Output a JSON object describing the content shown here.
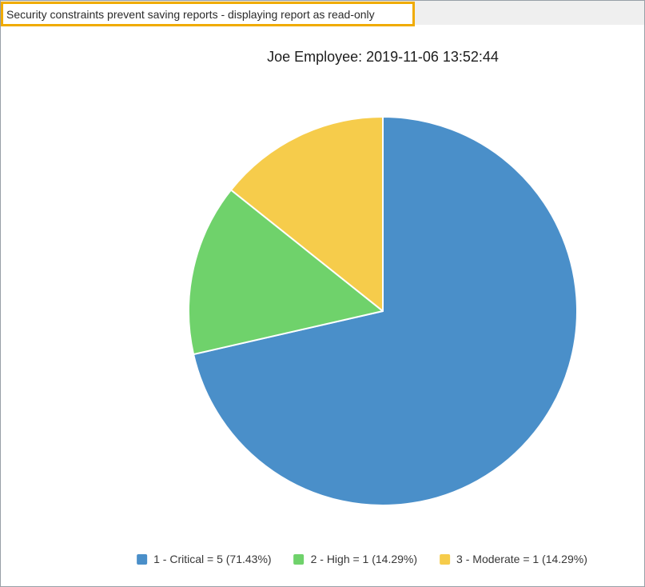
{
  "banner": {
    "text": "Security constraints prevent saving reports - displaying report as read-only",
    "border_color": "#F0AB00",
    "background": "#FFFFFF",
    "strip_background": "#EFEFEF"
  },
  "chart_data": {
    "type": "pie",
    "title": "Joe Employee: 2019-11-06 13:52:44",
    "legend_position": "bottom",
    "direction": "clockwise",
    "start_angle": "top",
    "total": 7,
    "slices": [
      {
        "label": "1 - Critical",
        "value": 5,
        "percent": "71.43%",
        "color": "#4A8FC9",
        "legend_label": "1 - Critical = 5 (71.43%)"
      },
      {
        "label": "2 - High",
        "value": 1,
        "percent": "14.29%",
        "color": "#6FD26B",
        "legend_label": "2 - High = 1 (14.29%)"
      },
      {
        "label": "3 - Moderate",
        "value": 1,
        "percent": "14.29%",
        "color": "#F6CC4B",
        "legend_label": "3 - Moderate = 1 (14.29%)"
      }
    ],
    "slice_border_color": "#FFFFFF"
  }
}
